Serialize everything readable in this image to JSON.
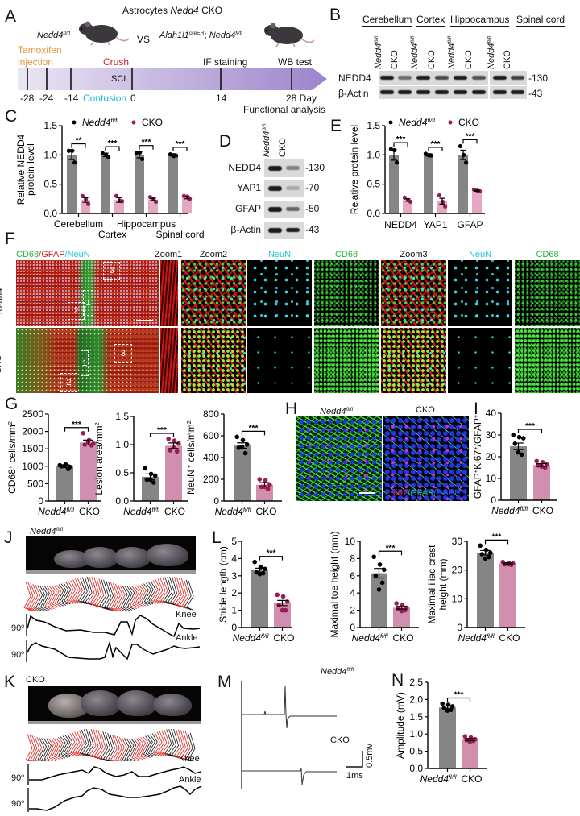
{
  "panel_letters": {
    "a": "A",
    "b": "B",
    "c": "C",
    "d": "D",
    "e": "E",
    "f": "F",
    "g": "G",
    "h": "H",
    "i": "I",
    "j": "J",
    "k": "K",
    "l": "L",
    "m": "M",
    "n": "N"
  },
  "genotype": {
    "ctrl_name": "Nedd4",
    "ctrl_sup": "fl/fl",
    "cko": "CKO"
  },
  "colors": {
    "ctrl_bar": "#858585",
    "cko_bar": "#d08fae",
    "cko_bar_light": "#e4a8c3",
    "ctrl_dot": "#000000",
    "cko_dot": "#9c1a55",
    "tamoxifen": "#e8923a",
    "crush": "#d0202a",
    "contusion": "#1fb3d6",
    "timeline_start": "#ebe6f4",
    "timeline_end": "#9c84cb"
  },
  "panel_a": {
    "title_prefix": "Astrocytes",
    "title_gene": "Nedd4",
    "title_suffix": "CKO",
    "vs": "VS",
    "cko_driver": "Aldh1l1",
    "cko_driver_sup": "creER",
    "cko_sep": ";",
    "tamoxifen": "Tamoxifen",
    "injection": "injection",
    "crush": "Crush",
    "sci": "SCI",
    "contusion": "Contusion",
    "if_staining": "IF staining",
    "wb_test": "WB test",
    "ticks": [
      "-28",
      "-24",
      "-14",
      "0",
      "14",
      "28 Day"
    ],
    "functional": "Functional analysis"
  },
  "panel_b": {
    "regions": [
      "Cerebellum",
      "Cortex",
      "Hippocampus",
      "Spinal cord"
    ],
    "rows": [
      "NEDD4",
      "β-Actin"
    ],
    "mw": [
      "-130",
      "-43"
    ]
  },
  "panel_d": {
    "rows": [
      "NEDD4",
      "YAP1",
      "GFAP",
      "β-Actin"
    ],
    "mw": [
      "-130",
      "-70",
      "-50",
      "-43"
    ]
  },
  "panel_f": {
    "stain": [
      "CD68",
      "/",
      "GFAP",
      "/",
      "NeuN"
    ],
    "columns": [
      "Zoom1",
      "Zoom2",
      "NeuN",
      "CD68",
      "Zoom3",
      "NeuN",
      "CD68"
    ],
    "boxes": [
      "1",
      "2",
      "3"
    ]
  },
  "panel_h": {
    "stain": [
      "Ki67",
      "/GFAP",
      "/DAPI"
    ]
  },
  "gait": {
    "knee": "Knee",
    "ankle": "Ankle",
    "angle": "90",
    "deg": "o"
  },
  "panel_m": {
    "scale_v": "0.5mv",
    "scale_h": "1ms"
  },
  "chart_data": [
    {
      "id": "C",
      "type": "bar",
      "title": "",
      "ylim": [
        0,
        1.5
      ],
      "yticks": [
        "0.0",
        "0.5",
        "1.0",
        "1.5"
      ],
      "ylabel_lines": [
        "Relative NEDD4",
        "protein level"
      ],
      "legend": "top",
      "categories": [
        "Cerebellum",
        "Cortex",
        "Hippocampus",
        "Spinal cord"
      ],
      "series": [
        {
          "name": [
            {
              "t": "Nedd4",
              "i": true
            },
            {
              "t": "fl/fl",
              "i": true,
              "sup": true
            }
          ],
          "values": [
            1.0,
            1.0,
            1.0,
            1.0
          ],
          "errors": [
            0.08,
            0.03,
            0.05,
            0.02
          ],
          "points": [
            [
              1.07,
              1.07,
              0.87
            ],
            [
              1.03,
              1.0,
              0.96
            ],
            [
              1.03,
              1.04,
              0.93
            ],
            [
              1.01,
              0.98,
              0.99
            ]
          ]
        },
        {
          "name": [
            {
              "t": "CKO"
            }
          ],
          "values": [
            0.23,
            0.23,
            0.24,
            0.27
          ],
          "errors": [
            0.04,
            0.04,
            0.02,
            0.02
          ],
          "points": [
            [
              0.3,
              0.24,
              0.16
            ],
            [
              0.3,
              0.22,
              0.21
            ],
            [
              0.28,
              0.25,
              0.2
            ],
            [
              0.3,
              0.29,
              0.25
            ]
          ]
        }
      ],
      "significance": [
        "**",
        "***",
        "***",
        "***"
      ]
    },
    {
      "id": "E",
      "type": "bar",
      "title": "",
      "ylim": [
        0,
        1.5
      ],
      "yticks": [
        "0.0",
        "0.5",
        "1.0",
        "1.5"
      ],
      "ylabel": "Relative protein level",
      "legend": "top",
      "categories": [
        "NEDD4",
        "YAP1",
        "GFAP"
      ],
      "series": [
        {
          "name": [
            {
              "t": "Nedd4",
              "i": true
            },
            {
              "t": "fl/fl",
              "i": true,
              "sup": true
            }
          ],
          "values": [
            1.0,
            1.0,
            1.0
          ],
          "errors": [
            0.09,
            0.02,
            0.08
          ],
          "points": [
            [
              1.1,
              1.08,
              0.87
            ],
            [
              1.02,
              0.99,
              0.99
            ],
            [
              1.15,
              1.0,
              0.87
            ]
          ]
        },
        {
          "name": [
            {
              "t": "CKO"
            }
          ],
          "values": [
            0.23,
            0.21,
            0.39
          ],
          "errors": [
            0.02,
            0.05,
            0.01
          ],
          "points": [
            [
              0.27,
              0.23,
              0.2
            ],
            [
              0.31,
              0.2,
              0.12
            ],
            [
              0.41,
              0.39,
              0.38
            ]
          ]
        }
      ],
      "significance": [
        "***",
        "***",
        "***"
      ]
    },
    {
      "id": "G1",
      "type": "bar",
      "ylim": [
        0,
        2500
      ],
      "yticks": [
        "0",
        "500",
        "1000",
        "1500",
        "2000",
        "2500"
      ],
      "ylabel": [
        {
          "t": "CD68"
        },
        {
          "t": "+",
          "sup": true
        },
        {
          "t": " cells/mm"
        },
        {
          "t": "2",
          "sup": true
        }
      ],
      "bars": [
        {
          "label": [
            {
              "t": "Nedd4",
              "i": true
            },
            {
              "t": "fl/fl",
              "i": true,
              "sup": true
            }
          ],
          "value": 1000,
          "error": 40,
          "points": [
            1030,
            1050,
            980,
            1000,
            920,
            1020
          ]
        },
        {
          "label": [
            {
              "t": "CKO"
            }
          ],
          "value": 1680,
          "error": 70,
          "points": [
            1950,
            1750,
            1650,
            1620,
            1600,
            1700
          ]
        }
      ],
      "significance": "***"
    },
    {
      "id": "G2",
      "type": "bar",
      "ylim": [
        0,
        1.5
      ],
      "yticks": [
        "0.0",
        "0.5",
        "1.0",
        "1.5"
      ],
      "ylabel": [
        {
          "t": "Lesion area/mm"
        },
        {
          "t": "2",
          "sup": true
        }
      ],
      "bars": [
        {
          "label": [
            {
              "t": "Nedd4",
              "i": true
            },
            {
              "t": "fl/fl",
              "i": true,
              "sup": true
            }
          ],
          "value": 0.43,
          "error": 0.05,
          "points": [
            0.58,
            0.48,
            0.45,
            0.38,
            0.33,
            0.38
          ]
        },
        {
          "label": [
            {
              "t": "CKO"
            }
          ],
          "value": 0.98,
          "error": 0.05,
          "points": [
            1.1,
            1.07,
            1.02,
            0.9,
            0.88,
            0.95
          ]
        }
      ],
      "significance": "***"
    },
    {
      "id": "G3",
      "type": "bar",
      "ylim": [
        0,
        800
      ],
      "yticks": [
        "0",
        "200",
        "400",
        "600",
        "800"
      ],
      "ylabel": [
        {
          "t": "NeuN"
        },
        {
          "t": " +",
          "sup": true
        },
        {
          "t": " cells/mm"
        },
        {
          "t": "2",
          "sup": true
        }
      ],
      "bars": [
        {
          "label": [
            {
              "t": "Nedd4",
              "i": true
            },
            {
              "t": "fl/fl",
              "i": true,
              "sup": true
            }
          ],
          "value": 510,
          "error": 25,
          "points": [
            590,
            560,
            520,
            490,
            440,
            500
          ]
        },
        {
          "label": [
            {
              "t": "CKO"
            }
          ],
          "value": 150,
          "error": 20,
          "points": [
            200,
            190,
            150,
            130,
            110,
            130
          ]
        }
      ],
      "significance": "***"
    },
    {
      "id": "I",
      "type": "bar",
      "ylim": [
        0,
        40
      ],
      "yticks": [
        "0",
        "10",
        "20",
        "30",
        "40"
      ],
      "ylabel": [
        {
          "t": "GFAP"
        },
        {
          "t": "+",
          "sup": true
        },
        {
          "t": "Ki67"
        },
        {
          "t": "+",
          "sup": true
        },
        {
          "t": "/GFAP"
        },
        {
          "t": "+",
          "sup": true
        }
      ],
      "bars": [
        {
          "label": [
            {
              "t": "Nedd4",
              "i": true
            },
            {
              "t": "fl/fl",
              "i": true,
              "sup": true
            }
          ],
          "value": 24.8,
          "error": 1.5,
          "points": [
            30,
            29,
            28.5,
            26,
            21,
            22
          ]
        },
        {
          "label": [
            {
              "t": "CKO"
            }
          ],
          "value": 16.2,
          "error": 0.6,
          "points": [
            18,
            17.5,
            16.5,
            16,
            15,
            15.5
          ]
        }
      ],
      "significance": "***"
    },
    {
      "id": "L1",
      "type": "bar",
      "ylim": [
        0,
        5
      ],
      "yticks": [
        "0",
        "1",
        "2",
        "3",
        "4",
        "5"
      ],
      "ylabel": "Stride length (cm)",
      "bars": [
        {
          "label": [
            {
              "t": "Nedd4",
              "i": true
            },
            {
              "t": "fl/fl",
              "i": true,
              "sup": true
            }
          ],
          "value": 3.32,
          "error": 0.12,
          "points": [
            3.8,
            3.5,
            3.4,
            3.2,
            3.15,
            3.1
          ]
        },
        {
          "label": [
            {
              "t": "CKO"
            }
          ],
          "value": 1.42,
          "error": 0.15,
          "points": [
            1.9,
            1.8,
            1.5,
            1.3,
            1.0,
            1.0
          ]
        }
      ],
      "significance": "***"
    },
    {
      "id": "L2",
      "type": "bar",
      "ylim": [
        0,
        10
      ],
      "yticks": [
        "0",
        "2",
        "4",
        "6",
        "8",
        "10"
      ],
      "ylabel": "Maximal toe height (mm)",
      "bars": [
        {
          "label": [
            {
              "t": "Nedd4",
              "i": true
            },
            {
              "t": "fl/fl",
              "i": true,
              "sup": true
            }
          ],
          "value": 6.3,
          "error": 0.55,
          "points": [
            8.2,
            7.3,
            6.7,
            6.0,
            5.2,
            4.4
          ]
        },
        {
          "label": [
            {
              "t": "CKO"
            }
          ],
          "value": 2.3,
          "error": 0.15,
          "points": [
            2.8,
            2.6,
            2.3,
            2.2,
            2.0,
            1.9
          ]
        }
      ],
      "significance": "***"
    },
    {
      "id": "L3",
      "type": "bar",
      "ylim": [
        0,
        30
      ],
      "yticks": [
        "0",
        "10",
        "20",
        "30"
      ],
      "ylabel_lines": [
        "Maximal iliac crest",
        "height (mm)"
      ],
      "bars": [
        {
          "label": [
            {
              "t": "Nedd4",
              "i": true
            },
            {
              "t": "fl/fl",
              "i": true,
              "sup": true
            }
          ],
          "value": 26.0,
          "error": 0.8,
          "points": [
            28.5,
            27,
            26,
            25.5,
            24.5,
            24
          ]
        },
        {
          "label": [
            {
              "t": "CKO"
            }
          ],
          "value": 22.3,
          "error": 0.2,
          "points": [
            22.8,
            22.5,
            22.3,
            22.0,
            21.8,
            22.0
          ]
        }
      ],
      "significance": "***"
    },
    {
      "id": "N",
      "type": "bar",
      "ylim": [
        0,
        2.5
      ],
      "yticks": [
        "0.0",
        "0.5",
        "1.0",
        "1.5",
        "2.0",
        "2.5"
      ],
      "ylabel": "Amplitude (mV)",
      "bars": [
        {
          "label": [
            {
              "t": "Nedd4",
              "i": true
            },
            {
              "t": "fl/fl",
              "i": true,
              "sup": true
            }
          ],
          "value": 1.77,
          "error": 0.04,
          "points": [
            1.88,
            1.85,
            1.8,
            1.75,
            1.7,
            1.68
          ]
        },
        {
          "label": [
            {
              "t": "CKO"
            }
          ],
          "value": 0.84,
          "error": 0.03,
          "points": [
            0.93,
            0.9,
            0.85,
            0.82,
            0.8,
            0.78
          ]
        }
      ],
      "significance": "***"
    }
  ]
}
